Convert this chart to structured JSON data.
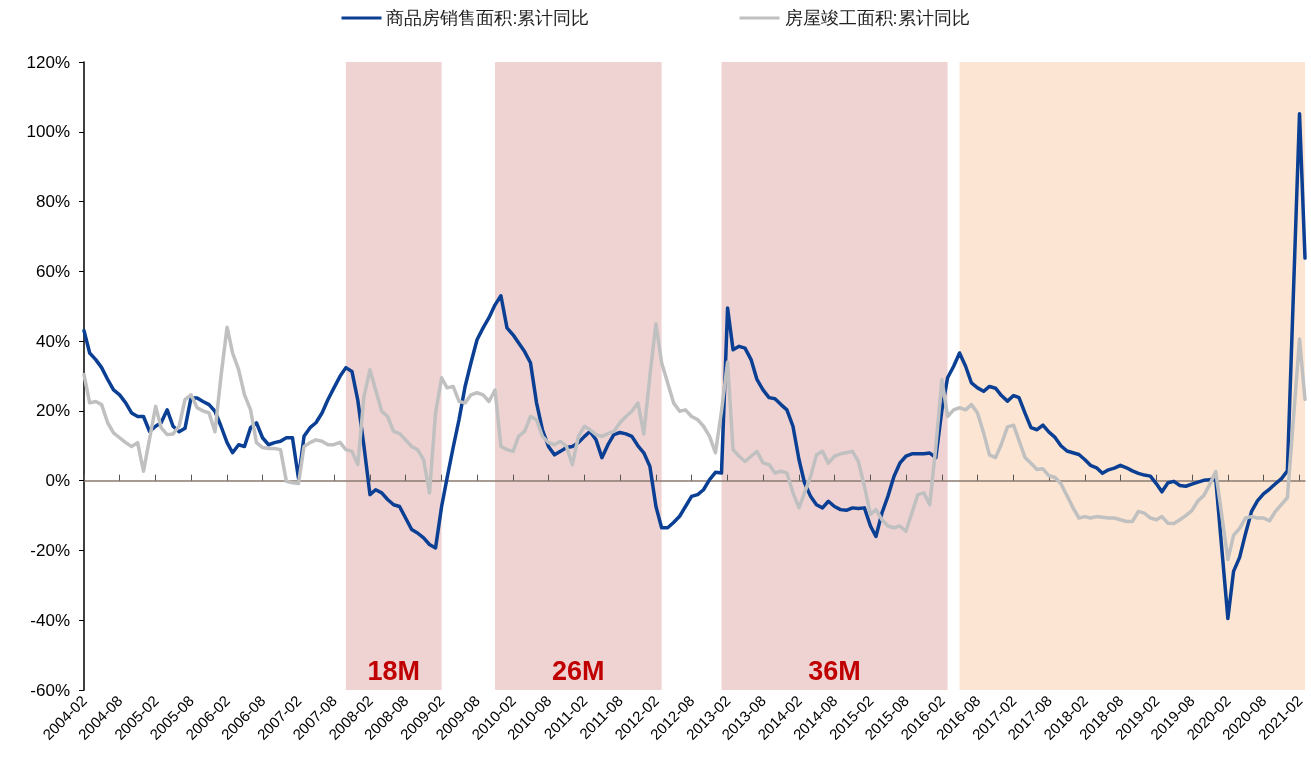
{
  "chart_data": {
    "type": "line",
    "x": [
      "2004-02",
      "2004-03",
      "2004-04",
      "2004-05",
      "2004-06",
      "2004-07",
      "2004-08",
      "2004-09",
      "2004-10",
      "2004-11",
      "2004-12",
      "2005-01",
      "2005-02",
      "2005-03",
      "2005-04",
      "2005-05",
      "2005-06",
      "2005-07",
      "2005-08",
      "2005-09",
      "2005-10",
      "2005-11",
      "2005-12",
      "2006-01",
      "2006-02",
      "2006-03",
      "2006-04",
      "2006-05",
      "2006-06",
      "2006-07",
      "2006-08",
      "2006-09",
      "2006-10",
      "2006-11",
      "2006-12",
      "2007-01",
      "2007-02",
      "2007-03",
      "2007-04",
      "2007-05",
      "2007-06",
      "2007-07",
      "2007-08",
      "2007-09",
      "2007-10",
      "2007-11",
      "2007-12",
      "2008-01",
      "2008-02",
      "2008-03",
      "2008-04",
      "2008-05",
      "2008-06",
      "2008-07",
      "2008-08",
      "2008-09",
      "2008-10",
      "2008-11",
      "2008-12",
      "2009-01",
      "2009-02",
      "2009-03",
      "2009-04",
      "2009-05",
      "2009-06",
      "2009-07",
      "2009-08",
      "2009-09",
      "2009-10",
      "2009-11",
      "2009-12",
      "2010-01",
      "2010-02",
      "2010-03",
      "2010-04",
      "2010-05",
      "2010-06",
      "2010-07",
      "2010-08",
      "2010-09",
      "2010-10",
      "2010-11",
      "2010-12",
      "2011-01",
      "2011-02",
      "2011-03",
      "2011-04",
      "2011-05",
      "2011-06",
      "2011-07",
      "2011-08",
      "2011-09",
      "2011-10",
      "2011-11",
      "2011-12",
      "2012-01",
      "2012-02",
      "2012-03",
      "2012-04",
      "2012-05",
      "2012-06",
      "2012-07",
      "2012-08",
      "2012-09",
      "2012-10",
      "2012-11",
      "2012-12",
      "2013-01",
      "2013-02",
      "2013-03",
      "2013-04",
      "2013-05",
      "2013-06",
      "2013-07",
      "2013-08",
      "2013-09",
      "2013-10",
      "2013-11",
      "2013-12",
      "2014-01",
      "2014-02",
      "2014-03",
      "2014-04",
      "2014-05",
      "2014-06",
      "2014-07",
      "2014-08",
      "2014-09",
      "2014-10",
      "2014-11",
      "2014-12",
      "2015-01",
      "2015-02",
      "2015-03",
      "2015-04",
      "2015-05",
      "2015-06",
      "2015-07",
      "2015-08",
      "2015-09",
      "2015-10",
      "2015-11",
      "2015-12",
      "2016-01",
      "2016-02",
      "2016-03",
      "2016-04",
      "2016-05",
      "2016-06",
      "2016-07",
      "2016-08",
      "2016-09",
      "2016-10",
      "2016-11",
      "2016-12",
      "2017-01",
      "2017-02",
      "2017-03",
      "2017-04",
      "2017-05",
      "2017-06",
      "2017-07",
      "2017-08",
      "2017-09",
      "2017-10",
      "2017-11",
      "2017-12",
      "2018-01",
      "2018-02",
      "2018-03",
      "2018-04",
      "2018-05",
      "2018-06",
      "2018-07",
      "2018-08",
      "2018-09",
      "2018-10",
      "2018-11",
      "2018-12",
      "2019-01",
      "2019-02",
      "2019-03",
      "2019-04",
      "2019-05",
      "2019-06",
      "2019-07",
      "2019-08",
      "2019-09",
      "2019-10",
      "2019-11",
      "2019-12",
      "2020-02",
      "2020-03",
      "2020-04",
      "2020-05",
      "2020-06",
      "2020-07",
      "2020-08",
      "2020-09",
      "2020-10",
      "2020-11",
      "2020-12",
      "2021-02",
      "2021-03"
    ],
    "series": [
      {
        "name": "商品房销售面积:累计同比",
        "color": "#0a3f94",
        "values": [
          43,
          36.6,
          34.7,
          32.4,
          29,
          26,
          24.6,
          22.3,
          19.4,
          18.4,
          18.4,
          14.1,
          15.6,
          16.6,
          20.3,
          15.6,
          14,
          15,
          23.8,
          23.7,
          22.7,
          21.8,
          19.9,
          15.6,
          10.9,
          8,
          10.3,
          9.8,
          15.2,
          16.6,
          12.3,
          10.3,
          10.9,
          11.3,
          12.3,
          12.3,
          0.6,
          12.7,
          15.2,
          16.6,
          19.4,
          23.2,
          26.6,
          29.9,
          32.4,
          31.3,
          23,
          10,
          -4,
          -2.6,
          -3.5,
          -5.4,
          -6.9,
          -7.4,
          -10.7,
          -14,
          -15,
          -16.4,
          -18.3,
          -19.3,
          -7.4,
          0.8,
          9.5,
          17.5,
          27,
          33.8,
          40.4,
          43.8,
          46.7,
          50.4,
          53,
          43.8,
          41.8,
          39.5,
          37,
          33.8,
          22.3,
          14.6,
          9.8,
          7.4,
          8.4,
          9.5,
          9.8,
          10.9,
          12.7,
          14.1,
          11.7,
          6.6,
          10.3,
          13.2,
          13.8,
          13.4,
          12.7,
          10,
          8,
          4.1,
          -7.4,
          -13.5,
          -13.5,
          -12,
          -10.2,
          -7.4,
          -4.5,
          -4,
          -2.6,
          0.3,
          2.4,
          2.2,
          49.5,
          37.5,
          38.5,
          38,
          34.7,
          29,
          26,
          23.8,
          23.5,
          21.8,
          20.3,
          15.6,
          6,
          -0.6,
          -4.5,
          -6.9,
          -7.8,
          -5.9,
          -7.4,
          -8.3,
          -8.5,
          -7.8,
          -8,
          -7.8,
          -13,
          -16,
          -9.2,
          -4.5,
          1.2,
          5,
          7,
          7.7,
          7.7,
          7.7,
          7.9,
          6.6,
          20.3,
          29.5,
          32.8,
          36.6,
          32.8,
          28,
          26.6,
          25.6,
          27,
          26.5,
          24.4,
          22.8,
          24.4,
          23.8,
          19.3,
          15.2,
          14.6,
          15.9,
          13.9,
          12.4,
          10,
          8.5,
          8,
          7.5,
          6,
          4.4,
          3.7,
          2.1,
          3.1,
          3.6,
          4.4,
          3.7,
          2.8,
          2.1,
          1.6,
          1.3,
          -0.9,
          -3.2,
          -0.6,
          -0.2,
          -1.4,
          -1.6,
          -1,
          -0.4,
          0.1,
          0.3,
          0.4,
          -39.5,
          -26,
          -22,
          -15.2,
          -8.8,
          -5.8,
          -3.8,
          -2.4,
          -0.9,
          0.6,
          2.8,
          105.2,
          63.8
        ]
      },
      {
        "name": "房屋竣工面积:累计同比",
        "color": "#c0c0c0",
        "values": [
          30.4,
          22.3,
          22.7,
          21.8,
          16.6,
          13.7,
          12.3,
          10.9,
          9.8,
          10.9,
          2.7,
          12,
          21.3,
          15.2,
          13.2,
          13.4,
          15.6,
          23.2,
          24.6,
          20.9,
          20,
          19.4,
          14,
          30,
          44,
          36.6,
          31.8,
          24.6,
          20.3,
          10.9,
          9.5,
          9.2,
          9.2,
          8.9,
          -0.2,
          -0.6,
          -0.8,
          9.8,
          10.9,
          11.7,
          11.3,
          10.3,
          10.3,
          11,
          8.9,
          8.4,
          4.6,
          24,
          31.8,
          26,
          19.9,
          18.4,
          14.1,
          13.5,
          11.7,
          9.8,
          8.9,
          6,
          -3.5,
          19.4,
          29.5,
          26.6,
          27,
          22.7,
          22.3,
          24.6,
          25.2,
          24.6,
          22.7,
          26,
          9.8,
          8.9,
          8.4,
          12.7,
          14.1,
          18.4,
          17.5,
          12.7,
          10.9,
          10.3,
          11.3,
          9.8,
          4.6,
          12.7,
          15.6,
          14.6,
          13.2,
          12.7,
          13.5,
          14.1,
          16.6,
          18.4,
          19.9,
          22.3,
          13.4,
          30,
          45,
          33.8,
          28,
          22.3,
          19.9,
          20.3,
          18.4,
          17.5,
          15.6,
          12.7,
          8,
          20,
          34,
          8.9,
          7,
          5.5,
          7,
          8.4,
          5.1,
          4.6,
          2.2,
          2.7,
          2.2,
          -3.5,
          -7.8,
          -3.5,
          1.2,
          7.4,
          8.4,
          5,
          7,
          7.7,
          8,
          8.4,
          5.5,
          -1.6,
          -9.7,
          -8.3,
          -11.2,
          -13,
          -13.5,
          -13,
          -14.5,
          -9.2,
          -4,
          -3.5,
          -6.9,
          9.8,
          29,
          18.4,
          20.3,
          20.9,
          20.3,
          21.8,
          19.4,
          13.7,
          7.4,
          6.6,
          10.5,
          15.4,
          15.9,
          11.5,
          6.6,
          5,
          3.2,
          3.4,
          1.4,
          0.9,
          -0.9,
          -4.3,
          -7.7,
          -10.7,
          -10.3,
          -10.7,
          -10.3,
          -10.5,
          -10.7,
          -10.7,
          -11.2,
          -11.7,
          -11.7,
          -8.8,
          -9.3,
          -10.7,
          -11.2,
          -10.3,
          -12.2,
          -12.3,
          -11.2,
          -10,
          -8.6,
          -5.8,
          -4.3,
          -1,
          2.6,
          -22.6,
          -15.7,
          -13.7,
          -10.7,
          -10.3,
          -10.7,
          -10.7,
          -11.5,
          -8.8,
          -6.8,
          -4.9,
          40.6,
          23.3
        ]
      }
    ],
    "xlim": [
      "2004-02",
      "2021-03"
    ],
    "xticks": [
      "2004-02",
      "2004-08",
      "2005-02",
      "2005-08",
      "2006-02",
      "2006-08",
      "2007-02",
      "2007-08",
      "2008-02",
      "2008-08",
      "2009-02",
      "2009-08",
      "2010-02",
      "2010-08",
      "2011-02",
      "2011-08",
      "2012-02",
      "2012-08",
      "2013-02",
      "2013-08",
      "2014-02",
      "2014-08",
      "2015-02",
      "2015-08",
      "2016-02",
      "2016-08",
      "2017-02",
      "2017-08",
      "2018-02",
      "2018-08",
      "2019-02",
      "2019-08",
      "2020-02",
      "2020-08",
      "2021-02"
    ],
    "ylim": [
      -60,
      120
    ],
    "yticks": [
      {
        "value": -60,
        "label": "-60%"
      },
      {
        "value": -40,
        "label": "-40%"
      },
      {
        "value": -20,
        "label": "-20%"
      },
      {
        "value": 0,
        "label": "0%"
      },
      {
        "value": 20,
        "label": "20%"
      },
      {
        "value": 40,
        "label": "40%"
      },
      {
        "value": 60,
        "label": "60%"
      },
      {
        "value": 80,
        "label": "80%"
      },
      {
        "value": 100,
        "label": "100%"
      },
      {
        "value": 120,
        "label": "120%"
      }
    ],
    "bands": [
      {
        "axis": "x",
        "from": "2007-10",
        "to": "2009-02",
        "label": "18M",
        "color": "#ecc9c9"
      },
      {
        "axis": "x",
        "from": "2009-11",
        "to": "2012-03",
        "label": "26M",
        "color": "#ecc9c9"
      },
      {
        "axis": "x",
        "from": "2013-01",
        "to": "2016-03",
        "label": "36M",
        "color": "#ecc9c9"
      },
      {
        "axis": "x",
        "from": "2016-05",
        "to": "2021-03",
        "color": "#fbe1c9"
      }
    ],
    "legend": "top",
    "marker": "none"
  }
}
